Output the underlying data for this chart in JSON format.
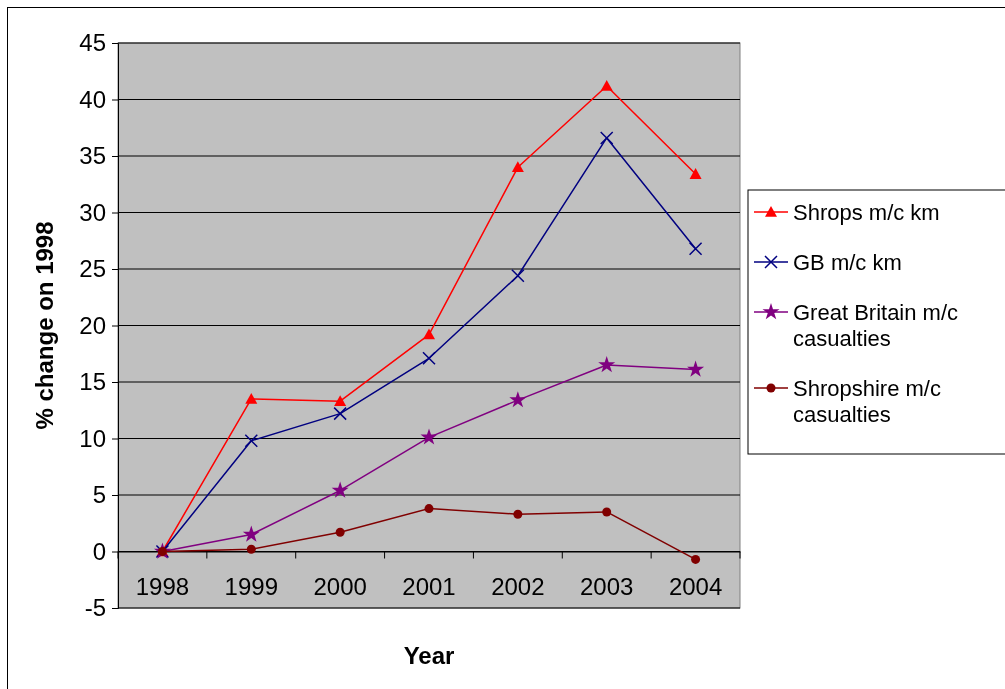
{
  "chart_data": {
    "type": "line",
    "xlabel": "Year",
    "ylabel": "% change on 1998",
    "categories": [
      "1998",
      "1999",
      "2000",
      "2001",
      "2002",
      "2003",
      "2004"
    ],
    "series": [
      {
        "name": "Shrops m/c km",
        "color": "#ff0000",
        "marker": "triangle",
        "values": [
          0,
          13.5,
          13.3,
          19.2,
          34.0,
          41.2,
          33.4
        ]
      },
      {
        "name": "GB m/c km",
        "color": "#000080",
        "marker": "cross",
        "values": [
          0,
          9.8,
          12.2,
          17.1,
          24.4,
          36.6,
          26.8
        ]
      },
      {
        "name": "Great Britain m/c casualties",
        "color": "#800080",
        "marker": "star",
        "values": [
          0,
          1.5,
          5.4,
          10.1,
          13.4,
          16.5,
          16.1
        ]
      },
      {
        "name": "Shropshire m/c casualties",
        "color": "#800000",
        "marker": "circle",
        "values": [
          0,
          0.2,
          1.7,
          3.8,
          3.3,
          3.5,
          -0.7
        ]
      }
    ],
    "ylim": [
      -5,
      45
    ],
    "yticks": [
      -5,
      0,
      5,
      10,
      15,
      20,
      25,
      30,
      35,
      40,
      45
    ],
    "grid": "y",
    "legend": "right"
  }
}
